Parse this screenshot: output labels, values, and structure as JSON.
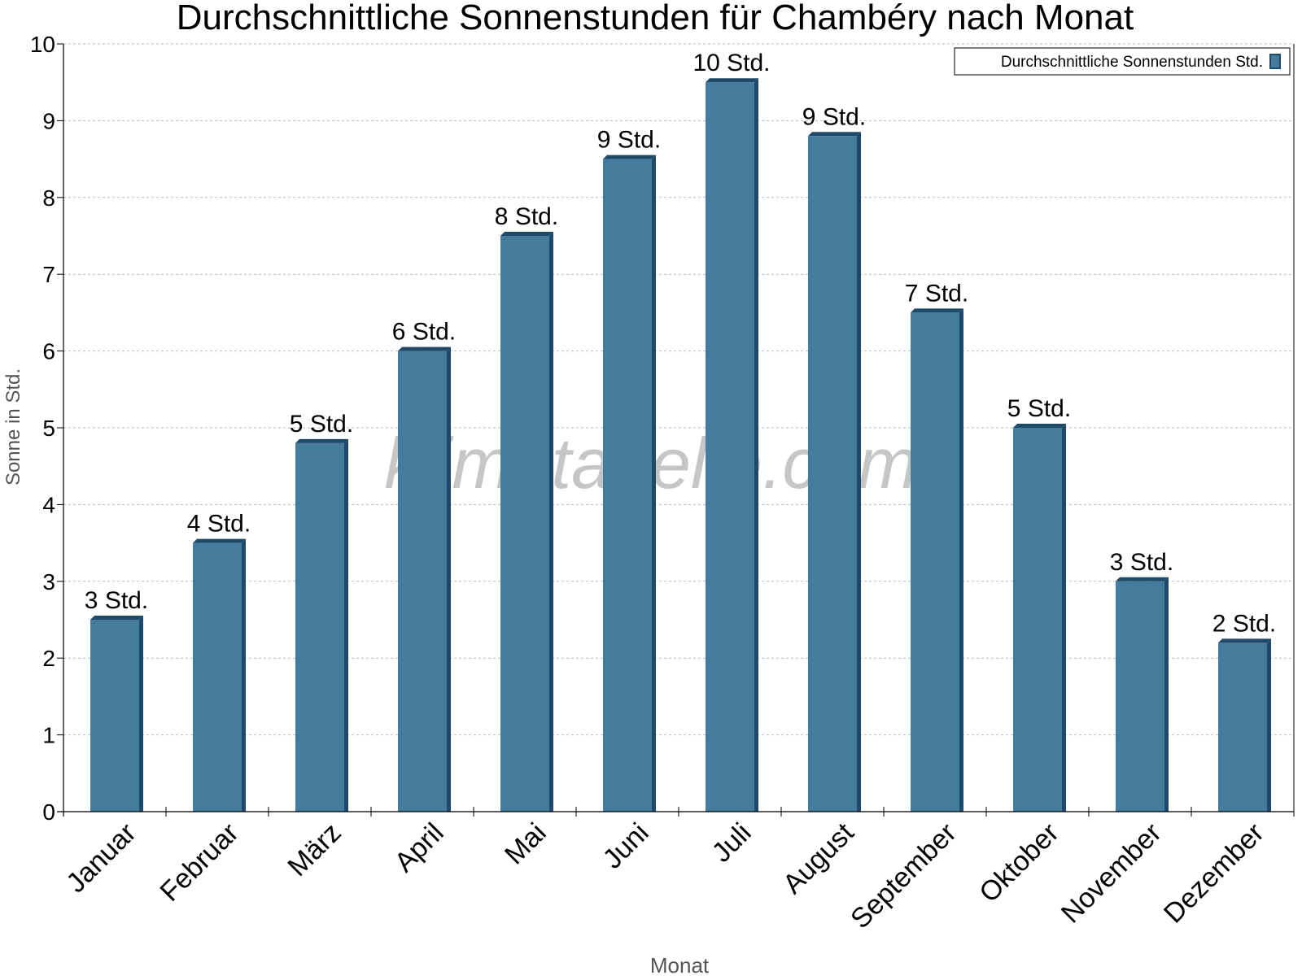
{
  "chart_data": {
    "type": "bar",
    "title": "Durchschnittliche Sonnenstunden für Chambéry nach Monat",
    "xlabel": "Monat",
    "ylabel": "Sonne in Std.",
    "ylim": [
      0,
      10
    ],
    "yticks": [
      "0",
      "1",
      "2",
      "3",
      "4",
      "5",
      "6",
      "7",
      "8",
      "9",
      "10"
    ],
    "grid": true,
    "legend_position": "top-right",
    "categories": [
      "Januar",
      "Februar",
      "März",
      "April",
      "Mai",
      "Juni",
      "Juli",
      "August",
      "September",
      "Oktober",
      "November",
      "Dezember"
    ],
    "series": [
      {
        "name": "Durchschnittliche Sonnenstunden Std.",
        "color": "#457b9d",
        "values": [
          2.5,
          3.5,
          4.8,
          6.0,
          7.5,
          8.5,
          9.5,
          8.8,
          6.5,
          5.0,
          3.0,
          2.2
        ],
        "data_labels": [
          "3 Std.",
          "4 Std.",
          "5 Std.",
          "6 Std.",
          "8 Std.",
          "9 Std.",
          "10 Std.",
          "9 Std.",
          "7 Std.",
          "5 Std.",
          "3 Std.",
          "2 Std."
        ]
      }
    ]
  },
  "watermark": "klimatabelle.com"
}
